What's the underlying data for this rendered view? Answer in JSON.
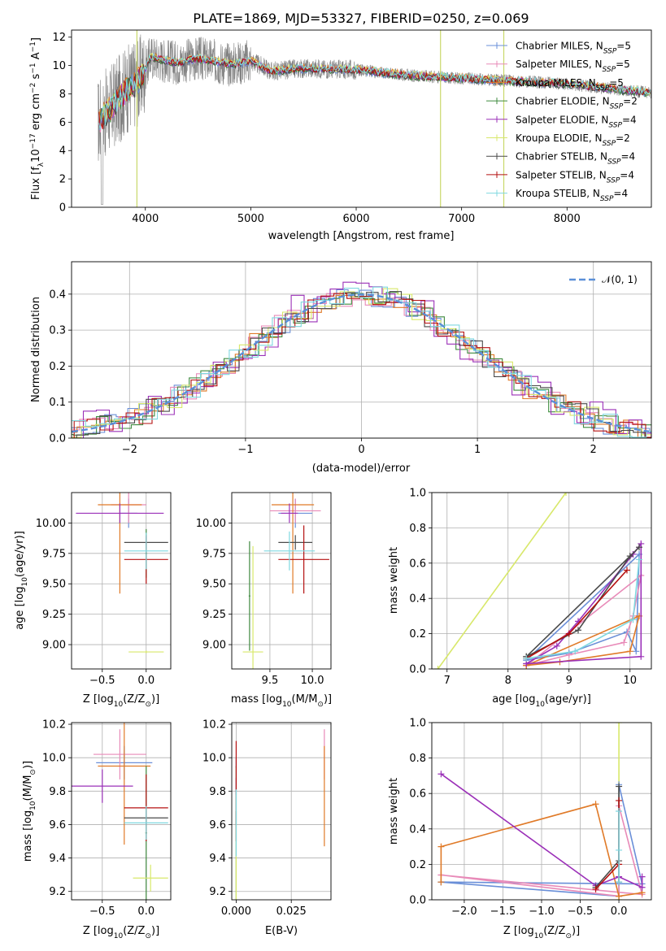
{
  "figure": {
    "title": "PLATE=1869, MJD=53327, FIBERID=0250, z=0.069"
  },
  "series": [
    {
      "name": "Chabrier MILES, N",
      "sub": "SSP",
      "tail": "=5",
      "color": "#6a8fd8"
    },
    {
      "name": "Salpeter MILES, N",
      "sub": "SSP",
      "tail": "=5",
      "color": "#e88ab8"
    },
    {
      "name": "Kroupa MILES, N",
      "sub": "SSP",
      "tail": "=5",
      "color": "#e07a28"
    },
    {
      "name": "Chabrier ELODIE, N",
      "sub": "SSP",
      "tail": "=2",
      "color": "#3f8a3f"
    },
    {
      "name": "Salpeter ELODIE, N",
      "sub": "SSP",
      "tail": "=4",
      "color": "#9b30b8"
    },
    {
      "name": "Kroupa ELODIE, N",
      "sub": "SSP",
      "tail": "=2",
      "color": "#d8e86a"
    },
    {
      "name": "Chabrier STELIB, N",
      "sub": "SSP",
      "tail": "=4",
      "color": "#4a4a4a"
    },
    {
      "name": "Salpeter STELIB, N",
      "sub": "SSP",
      "tail": "=4",
      "color": "#b51010"
    },
    {
      "name": "Kroupa STELIB, N",
      "sub": "SSP",
      "tail": "=4",
      "color": "#7fd8e0"
    }
  ],
  "chart_data": [
    {
      "id": "spectrum",
      "type": "line",
      "title": "PLATE=1869, MJD=53327, FIBERID=0250, z=0.069",
      "xlabel": "wavelength [Angstrom, rest frame]",
      "ylabel_parts": {
        "a": "Flux [f",
        "asub": "λ",
        "b": "10",
        "bsup": "−17",
        "c": " erg cm",
        "csup": "−2",
        "d": " s",
        "dsup": "−1",
        "e": " A",
        "esup": "−1",
        "f": "]"
      },
      "xlim": [
        3300,
        8800
      ],
      "ylim": [
        0,
        12.5
      ],
      "xticks": [
        4000,
        5000,
        6000,
        7000,
        8000
      ],
      "yticks": [
        0,
        2,
        4,
        6,
        8,
        10,
        12
      ],
      "legend": "upper-right",
      "continuum": {
        "x": [
          3550,
          3700,
          3850,
          3950,
          4050,
          4300,
          4500,
          4800,
          5000,
          5200,
          5500,
          6000,
          6500,
          7000,
          7500,
          8000,
          8500,
          8800
        ],
        "y": [
          6.0,
          7.2,
          8.5,
          9.0,
          10.6,
          10.2,
          10.5,
          10.1,
          10.3,
          9.6,
          9.8,
          9.7,
          9.3,
          9.1,
          8.9,
          8.7,
          8.3,
          8.1
        ]
      }
    },
    {
      "id": "residuals",
      "type": "histogram",
      "xlabel": "(data-model)/error",
      "ylabel": "Normed distribution",
      "xlim": [
        -2.5,
        2.5
      ],
      "ylim": [
        0,
        0.49
      ],
      "xticks": [
        -2,
        -1,
        0,
        1,
        2
      ],
      "yticks": [
        0.0,
        0.1,
        0.2,
        0.3,
        0.4
      ],
      "reference_label": "𝒩(0, 1)",
      "legend": "upper-right"
    },
    {
      "id": "age-vs-Z",
      "type": "errorbar",
      "xlabel_parts": {
        "a": "Z [log",
        "asub": "10",
        "b": "(Z/Z",
        "bsub": "⊙",
        "c": ")]"
      },
      "ylabel_parts": {
        "a": "age  [log",
        "asub": "10",
        "b": "(age/yr)]"
      },
      "xlim": [
        -0.85,
        0.28
      ],
      "ylim": [
        8.8,
        10.25
      ],
      "xticks": [
        -0.5,
        0.0
      ],
      "yticks": [
        9.0,
        9.25,
        9.5,
        9.75,
        10.0
      ],
      "points": [
        {
          "s": 0,
          "x": -0.2,
          "xerr": 0.1,
          "y": 10.08,
          "yerr": 0.12
        },
        {
          "s": 1,
          "x": -0.2,
          "xerr": 0.2,
          "y": 10.15,
          "yerr": 0.15
        },
        {
          "s": 2,
          "x": -0.3,
          "xerr": 0.25,
          "y": 10.15,
          "yerr": 0.73
        },
        {
          "s": 3,
          "x": 0.0,
          "xerr": 0.01,
          "y": 9.75,
          "yerr": 0.2
        },
        {
          "s": 4,
          "x": -0.3,
          "xerr": 0.5,
          "y": 10.08,
          "yerr": 0.08
        },
        {
          "s": 5,
          "x": 0.0,
          "xerr": 0.2,
          "y": 8.94,
          "yerr": 0.01
        },
        {
          "s": 6,
          "x": 0.0,
          "xerr": 0.25,
          "y": 9.84,
          "yerr": 0.05
        },
        {
          "s": 7,
          "x": 0.0,
          "xerr": 0.25,
          "y": 9.7,
          "yerr": 0.2
        },
        {
          "s": 8,
          "x": 0.0,
          "xerr": 0.25,
          "y": 9.77,
          "yerr": 0.15
        }
      ]
    },
    {
      "id": "age-vs-mass",
      "type": "errorbar",
      "xlabel_parts": {
        "a": "mass [log",
        "asub": "10",
        "b": "(M/M",
        "bsub": "⊙",
        "c": ")]"
      },
      "ylabel_parts": {
        "a": "",
        "asub": "",
        "b": ""
      },
      "xlim": [
        9.05,
        10.22
      ],
      "ylim": [
        8.8,
        10.25
      ],
      "xticks": [
        9.5,
        10.0
      ],
      "yticks": [
        9.0,
        9.25,
        9.5,
        9.75,
        10.0
      ],
      "points": [
        {
          "s": 0,
          "x": 9.8,
          "xerr": 0.2,
          "y": 10.08,
          "yerr": 0.12
        },
        {
          "s": 1,
          "x": 9.8,
          "xerr": 0.3,
          "y": 10.1,
          "yerr": 0.1
        },
        {
          "s": 2,
          "x": 9.77,
          "xerr": 0.25,
          "y": 10.15,
          "yerr": 0.73
        },
        {
          "s": 3,
          "x": 9.26,
          "xerr": 0.01,
          "y": 9.4,
          "yerr": 0.45
        },
        {
          "s": 4,
          "x": 9.73,
          "xerr": 0.1,
          "y": 10.08,
          "yerr": 0.08
        },
        {
          "s": 5,
          "x": 9.3,
          "xerr": 0.12,
          "y": 8.94,
          "yerr": 0.87
        },
        {
          "s": 6,
          "x": 9.8,
          "xerr": 0.2,
          "y": 9.84,
          "yerr": 0.06
        },
        {
          "s": 7,
          "x": 9.9,
          "xerr": 0.3,
          "y": 9.7,
          "yerr": 0.28
        },
        {
          "s": 8,
          "x": 9.73,
          "xerr": 0.3,
          "y": 9.77,
          "yerr": 0.16
        }
      ]
    },
    {
      "id": "mass-weight-vs-age",
      "type": "line",
      "xlabel_parts": {
        "a": "age  [log",
        "asub": "10",
        "b": "(age/yr)]"
      },
      "ylabel": "mass weight",
      "xlim": [
        6.75,
        10.35
      ],
      "ylim": [
        0,
        1.0
      ],
      "xticks": [
        7,
        8,
        9,
        10
      ],
      "yticks": [
        0.0,
        0.2,
        0.4,
        0.6,
        0.8,
        1.0
      ],
      "lines": [
        {
          "s": 5,
          "x": [
            6.85,
            8.95
          ],
          "y": [
            0.0,
            1.0
          ]
        },
        {
          "s": 0,
          "x": [
            8.3,
            9.0,
            9.95,
            10.1,
            10.15,
            8.3
          ],
          "y": [
            0.05,
            0.09,
            0.21,
            0.1,
            0.65,
            0.05
          ]
        },
        {
          "s": 1,
          "x": [
            8.3,
            9.0,
            9.9,
            10.05,
            10.18,
            8.3
          ],
          "y": [
            0.02,
            0.08,
            0.15,
            0.3,
            0.53,
            0.02
          ]
        },
        {
          "s": 2,
          "x": [
            8.3,
            8.85,
            10.0,
            10.15,
            8.3
          ],
          "y": [
            0.02,
            0.04,
            0.1,
            0.3,
            0.02
          ]
        },
        {
          "s": 4,
          "x": [
            8.3,
            8.8,
            9.15,
            10.05,
            10.18,
            10.18,
            8.3
          ],
          "y": [
            0.03,
            0.13,
            0.27,
            0.65,
            0.71,
            0.07,
            0.03
          ]
        },
        {
          "s": 6,
          "x": [
            8.3,
            9.15,
            10.0,
            10.15,
            8.3
          ],
          "y": [
            0.07,
            0.22,
            0.64,
            0.69,
            0.07
          ]
        },
        {
          "s": 7,
          "x": [
            8.3,
            9.0,
            9.95
          ],
          "y": [
            0.06,
            0.2,
            0.56
          ]
        },
        {
          "s": 8,
          "x": [
            8.3,
            9.1,
            10.05,
            10.15
          ],
          "y": [
            0.06,
            0.1,
            0.28,
            0.62
          ]
        }
      ]
    },
    {
      "id": "mass-vs-Z",
      "type": "errorbar",
      "xlabel_parts": {
        "a": "Z [log",
        "asub": "10",
        "b": "(Z/Z",
        "bsub": "⊙",
        "c": ")]"
      },
      "ylabel_parts": {
        "a": "mass [log",
        "asub": "10",
        "b": "(M/M",
        "bsub": "⊙",
        "c": ")]"
      },
      "xlim": [
        -0.85,
        0.28
      ],
      "ylim": [
        9.15,
        10.21
      ],
      "xticks": [
        -0.5,
        0.0
      ],
      "yticks": [
        9.2,
        9.4,
        9.6,
        9.8,
        10.0,
        10.2
      ],
      "points": [
        {
          "s": 0,
          "x": -0.25,
          "xerr": 0.32,
          "y": 9.97,
          "yerr": 0.1
        },
        {
          "s": 1,
          "x": -0.3,
          "xerr": 0.3,
          "y": 10.02,
          "yerr": 0.15
        },
        {
          "s": 2,
          "x": -0.25,
          "xerr": 0.3,
          "y": 9.95,
          "yerr": 0.47
        },
        {
          "s": 3,
          "x": 0.0,
          "xerr": 0.01,
          "y": 9.55,
          "yerr": 0.4
        },
        {
          "s": 4,
          "x": -0.5,
          "xerr": 0.35,
          "y": 9.83,
          "yerr": 0.1
        },
        {
          "s": 5,
          "x": 0.05,
          "xerr": 0.2,
          "y": 9.28,
          "yerr": 0.08
        },
        {
          "s": 6,
          "x": 0.0,
          "xerr": 0.25,
          "y": 9.64,
          "yerr": 0.04
        },
        {
          "s": 7,
          "x": 0.0,
          "xerr": 0.25,
          "y": 9.7,
          "yerr": 0.2
        },
        {
          "s": 8,
          "x": 0.0,
          "xerr": 0.25,
          "y": 9.61,
          "yerr": 0.1
        }
      ]
    },
    {
      "id": "mass-vs-ebv",
      "type": "errorbar",
      "xlabel": "E(B-V)",
      "xlim": [
        -0.002,
        0.043
      ],
      "ylim": [
        9.15,
        10.21
      ],
      "xticks": [
        0.0,
        0.025
      ],
      "xticklabels": [
        "0.000",
        "0.025"
      ],
      "yticks": [
        9.2,
        9.4,
        9.6,
        9.8,
        10.0,
        10.2
      ],
      "points": [
        {
          "s": 0,
          "x": 0.0,
          "xerr": 0.0,
          "y": 9.97,
          "yerr": 0.03
        },
        {
          "s": 1,
          "x": 0.04,
          "xerr": 0.0,
          "y": 10.02,
          "yerr": 0.15
        },
        {
          "s": 2,
          "x": 0.04,
          "xerr": 0.0,
          "y": 9.77,
          "yerr": 0.3
        },
        {
          "s": 3,
          "x": 0.0,
          "xerr": 0.0,
          "y": 9.55,
          "yerr": 0.4
        },
        {
          "s": 4,
          "x": 0.0,
          "xerr": 0.0,
          "y": 9.83,
          "yerr": 0.05
        },
        {
          "s": 5,
          "x": 0.0,
          "xerr": 0.0,
          "y": 9.28,
          "yerr": 0.4
        },
        {
          "s": 6,
          "x": 0.0,
          "xerr": 0.0,
          "y": 9.64,
          "yerr": 0.04
        },
        {
          "s": 7,
          "x": 0.0,
          "xerr": 0.0,
          "y": 9.8,
          "yerr": 0.3
        },
        {
          "s": 8,
          "x": 0.0,
          "xerr": 0.0,
          "y": 9.61,
          "yerr": 0.2
        }
      ]
    },
    {
      "id": "mass-weight-vs-Z",
      "type": "line",
      "xlabel_parts": {
        "a": "Z [log",
        "asub": "10",
        "b": "(Z/Z",
        "bsub": "⊙",
        "c": ")]"
      },
      "ylabel": "mass weight",
      "xlim": [
        -2.42,
        0.42
      ],
      "ylim": [
        0,
        1.0
      ],
      "xticks": [
        -2.0,
        -1.5,
        -1.0,
        -0.5,
        0.0
      ],
      "yticks": [
        0.0,
        0.2,
        0.4,
        0.6,
        0.8,
        1.0
      ],
      "lines": [
        {
          "s": 5,
          "x": [
            0.0,
            0.0
          ],
          "y": [
            0.0,
            1.0
          ]
        },
        {
          "s": 0,
          "x": [
            -2.3,
            0.0,
            0.0,
            0.3,
            -2.3
          ],
          "y": [
            0.1,
            0.02,
            0.65,
            0.09,
            0.1
          ]
        },
        {
          "s": 1,
          "x": [
            -2.3,
            0.0,
            0.0,
            0.3,
            -2.3
          ],
          "y": [
            0.14,
            0.02,
            0.53,
            0.03,
            0.14
          ]
        },
        {
          "s": 2,
          "x": [
            -2.3,
            -2.3,
            -0.3,
            0.0,
            0.3
          ],
          "y": [
            0.1,
            0.3,
            0.54,
            0.02,
            0.04
          ]
        },
        {
          "s": 4,
          "x": [
            -2.3,
            -0.3,
            0.0,
            0.3,
            0.3
          ],
          "y": [
            0.71,
            0.08,
            0.13,
            0.07,
            0.13
          ]
        },
        {
          "s": 6,
          "x": [
            -0.3,
            0.0,
            0.0,
            0.0
          ],
          "y": [
            0.07,
            0.22,
            0.64,
            0.1
          ]
        },
        {
          "s": 7,
          "x": [
            -0.3,
            0.0,
            0.0
          ],
          "y": [
            0.06,
            0.2,
            0.56
          ]
        },
        {
          "s": 8,
          "x": [
            0.0,
            0.0,
            0.0
          ],
          "y": [
            0.1,
            0.28,
            0.5
          ]
        }
      ]
    }
  ]
}
